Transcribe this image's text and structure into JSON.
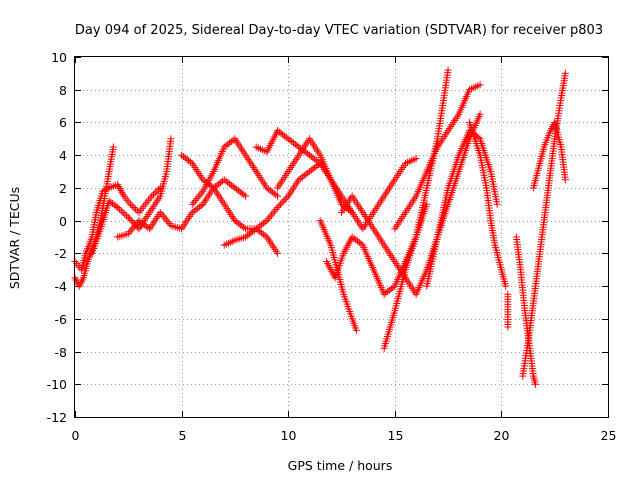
{
  "chart_data": {
    "type": "scatter",
    "title": "Day 094 of 2025, Sidereal Day-to-day VTEC variation (SDTVAR) for receiver p803",
    "xlabel": "GPS time / hours",
    "ylabel": "SDTVAR / TECUs",
    "xlim": [
      0,
      25
    ],
    "ylim": [
      -12,
      10
    ],
    "xticks": [
      0,
      5,
      10,
      15,
      20,
      25
    ],
    "yticks": [
      -12,
      -10,
      -8,
      -6,
      -4,
      -2,
      0,
      2,
      4,
      6,
      8,
      10
    ],
    "grid": true,
    "legend": "none",
    "marker": "+",
    "color": "#ff0000",
    "series": [
      {
        "segments": [
          [
            [
              0.0,
              -3.5
            ],
            [
              0.2,
              -4.0
            ],
            [
              0.4,
              -3.5
            ],
            [
              0.6,
              -2.5
            ],
            [
              0.8,
              -1.8
            ],
            [
              1.0,
              -1.0
            ],
            [
              1.2,
              0.0
            ],
            [
              1.4,
              1.5
            ],
            [
              1.6,
              3.0
            ],
            [
              1.8,
              4.5
            ]
          ],
          [
            [
              0.0,
              -2.5
            ],
            [
              0.3,
              -3.0
            ],
            [
              0.5,
              -2.0
            ],
            [
              0.8,
              -1.0
            ],
            [
              1.0,
              0.5
            ],
            [
              1.3,
              1.8
            ],
            [
              1.6,
              2.0
            ],
            [
              2.0,
              2.2
            ],
            [
              2.3,
              1.5
            ],
            [
              2.6,
              1.0
            ],
            [
              3.0,
              0.5
            ],
            [
              3.3,
              1.0
            ],
            [
              3.6,
              1.5
            ],
            [
              4.0,
              2.0
            ]
          ],
          [
            [
              0.8,
              -2.0
            ],
            [
              1.2,
              -0.5
            ],
            [
              1.6,
              1.2
            ],
            [
              2.0,
              0.8
            ],
            [
              2.5,
              0.2
            ],
            [
              3.0,
              -0.5
            ],
            [
              3.5,
              0.5
            ],
            [
              4.0,
              1.5
            ],
            [
              4.3,
              3.0
            ],
            [
              4.5,
              5.0
            ]
          ],
          [
            [
              2.0,
              -1.0
            ],
            [
              2.5,
              -0.8
            ],
            [
              3.0,
              0.0
            ],
            [
              3.5,
              -0.5
            ],
            [
              4.0,
              0.5
            ],
            [
              4.5,
              -0.3
            ],
            [
              5.0,
              -0.5
            ],
            [
              5.5,
              0.5
            ],
            [
              6.0,
              1.0
            ],
            [
              6.5,
              2.0
            ],
            [
              7.0,
              2.5
            ],
            [
              7.5,
              2.0
            ],
            [
              8.0,
              1.5
            ]
          ],
          [
            [
              5.0,
              4.0
            ],
            [
              5.5,
              3.5
            ],
            [
              6.0,
              2.5
            ],
            [
              6.5,
              2.0
            ],
            [
              7.0,
              1.0
            ],
            [
              7.5,
              0.0
            ],
            [
              8.0,
              -0.5
            ],
            [
              8.5,
              -0.5
            ],
            [
              9.0,
              -1.0
            ],
            [
              9.5,
              -2.0
            ]
          ],
          [
            [
              5.5,
              1.0
            ],
            [
              6.0,
              1.8
            ],
            [
              6.5,
              3.0
            ],
            [
              7.0,
              4.5
            ],
            [
              7.5,
              5.0
            ],
            [
              8.0,
              4.0
            ],
            [
              8.5,
              3.0
            ],
            [
              9.0,
              2.0
            ],
            [
              9.5,
              1.5
            ]
          ],
          [
            [
              7.0,
              -1.5
            ],
            [
              7.5,
              -1.2
            ],
            [
              8.0,
              -1.0
            ],
            [
              8.5,
              -0.5
            ],
            [
              9.0,
              0.0
            ],
            [
              9.5,
              0.8
            ],
            [
              10.0,
              1.5
            ],
            [
              10.5,
              2.5
            ],
            [
              11.0,
              3.0
            ],
            [
              11.5,
              3.5
            ]
          ],
          [
            [
              8.5,
              4.5
            ],
            [
              9.0,
              4.2
            ],
            [
              9.5,
              5.5
            ],
            [
              10.0,
              5.0
            ],
            [
              10.5,
              4.5
            ],
            [
              11.0,
              4.0
            ],
            [
              11.5,
              3.5
            ],
            [
              12.0,
              2.5
            ],
            [
              12.5,
              1.5
            ],
            [
              13.0,
              0.5
            ]
          ],
          [
            [
              9.5,
              2.0
            ],
            [
              10.0,
              3.0
            ],
            [
              10.5,
              4.0
            ],
            [
              11.0,
              5.0
            ],
            [
              11.5,
              4.0
            ],
            [
              12.0,
              2.5
            ],
            [
              12.5,
              1.0
            ],
            [
              13.0,
              0.5
            ],
            [
              13.5,
              -0.5
            ],
            [
              14.0,
              0.5
            ],
            [
              14.5,
              1.5
            ],
            [
              15.0,
              2.5
            ],
            [
              15.5,
              3.5
            ],
            [
              16.0,
              3.8
            ]
          ],
          [
            [
              11.5,
              0.0
            ],
            [
              12.0,
              -1.5
            ],
            [
              12.3,
              -3.0
            ],
            [
              12.6,
              -4.5
            ],
            [
              13.0,
              -6.0
            ],
            [
              13.2,
              -6.7
            ]
          ],
          [
            [
              11.8,
              -2.5
            ],
            [
              12.2,
              -3.5
            ],
            [
              12.6,
              -2.0
            ],
            [
              13.0,
              -1.0
            ],
            [
              13.5,
              -1.5
            ],
            [
              14.0,
              -3.0
            ],
            [
              14.5,
              -4.5
            ],
            [
              15.0,
              -4.0
            ],
            [
              15.5,
              -2.5
            ],
            [
              16.0,
              -1.0
            ],
            [
              16.5,
              1.0
            ]
          ],
          [
            [
              12.5,
              0.5
            ],
            [
              13.0,
              1.5
            ],
            [
              13.5,
              0.5
            ],
            [
              14.0,
              -0.5
            ],
            [
              14.5,
              -1.5
            ],
            [
              15.0,
              -2.5
            ],
            [
              15.5,
              -3.5
            ],
            [
              16.0,
              -4.5
            ],
            [
              16.5,
              -3.0
            ],
            [
              17.0,
              -1.0
            ],
            [
              17.5,
              1.0
            ],
            [
              18.0,
              3.0
            ],
            [
              18.5,
              5.0
            ],
            [
              19.0,
              6.5
            ]
          ],
          [
            [
              14.5,
              -7.8
            ],
            [
              15.0,
              -5.5
            ],
            [
              15.5,
              -3.0
            ],
            [
              16.0,
              -1.0
            ],
            [
              16.5,
              2.0
            ],
            [
              17.0,
              5.0
            ],
            [
              17.3,
              7.5
            ],
            [
              17.5,
              9.2
            ]
          ],
          [
            [
              15.0,
              -0.5
            ],
            [
              15.5,
              0.5
            ],
            [
              16.0,
              1.5
            ],
            [
              16.5,
              3.0
            ],
            [
              17.0,
              4.5
            ],
            [
              17.5,
              5.5
            ],
            [
              18.0,
              6.5
            ],
            [
              18.5,
              8.0
            ],
            [
              19.0,
              8.3
            ]
          ],
          [
            [
              16.5,
              -4.0
            ],
            [
              17.0,
              -1.0
            ],
            [
              17.5,
              2.0
            ],
            [
              18.0,
              4.0
            ],
            [
              18.5,
              5.5
            ],
            [
              19.0,
              5.0
            ],
            [
              19.5,
              3.0
            ],
            [
              19.8,
              1.0
            ]
          ],
          [
            [
              18.5,
              6.0
            ],
            [
              19.0,
              4.0
            ],
            [
              19.3,
              2.0
            ],
            [
              19.5,
              0.0
            ],
            [
              19.7,
              -1.5
            ],
            [
              20.0,
              -3.0
            ],
            [
              20.2,
              -4.0
            ]
          ],
          [
            [
              20.3,
              -4.5
            ],
            [
              20.3,
              -6.5
            ]
          ],
          [
            [
              20.7,
              -1.0
            ],
            [
              20.9,
              -3.0
            ],
            [
              21.1,
              -5.5
            ],
            [
              21.3,
              -7.5
            ],
            [
              21.5,
              -9.5
            ],
            [
              21.6,
              -10.0
            ]
          ],
          [
            [
              21.0,
              -9.5
            ],
            [
              21.3,
              -7.0
            ],
            [
              21.6,
              -4.0
            ],
            [
              21.9,
              -1.0
            ],
            [
              22.2,
              2.0
            ],
            [
              22.5,
              5.0
            ],
            [
              22.8,
              7.5
            ],
            [
              23.0,
              9.0
            ]
          ],
          [
            [
              21.5,
              2.0
            ],
            [
              21.8,
              3.5
            ],
            [
              22.0,
              4.5
            ],
            [
              22.3,
              5.5
            ],
            [
              22.5,
              6.0
            ],
            [
              22.8,
              4.5
            ],
            [
              23.0,
              2.5
            ]
          ]
        ]
      }
    ]
  }
}
